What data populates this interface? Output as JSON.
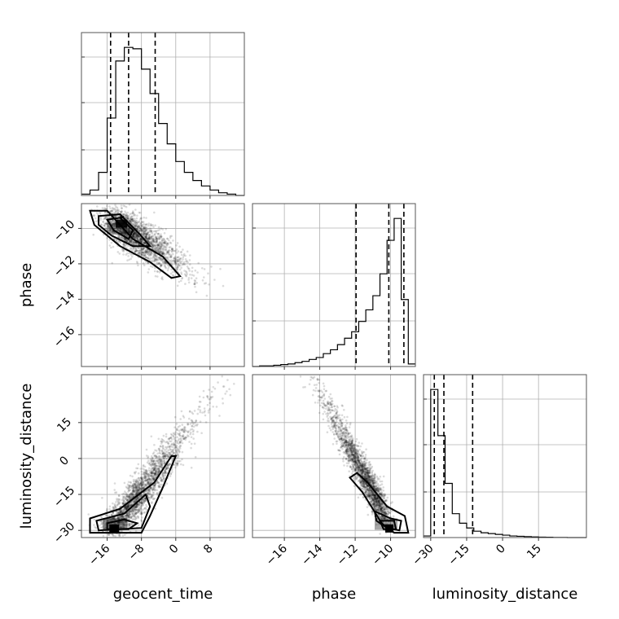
{
  "chart_data": {
    "type": "corner",
    "parameters": [
      "geocent_time",
      "phase",
      "luminosity_distance"
    ],
    "axis_labels": {
      "geocent_time": "geocent_time",
      "phase": "phase",
      "luminosity_distance": "luminosity_distance"
    },
    "ranges": {
      "geocent_time": [
        -22,
        16
      ],
      "phase": [
        -17.8,
        -8.6
      ],
      "luminosity_distance": [
        -33,
        35
      ]
    },
    "tick_values": {
      "geocent_time": [
        -16,
        -8,
        0,
        8
      ],
      "phase": [
        -16,
        -14,
        -12,
        -10
      ],
      "luminosity_distance": [
        -30,
        -15,
        0,
        15
      ]
    },
    "tick_labels": {
      "geocent_time": [
        "−16",
        "−8",
        "0",
        "8"
      ],
      "phase": [
        "−16",
        "−14",
        "−12",
        "−10"
      ],
      "luminosity_distance": [
        "−30",
        "−15",
        "0",
        "15"
      ]
    },
    "quantiles": {
      "geocent_time": [
        -15.2,
        -11.0,
        -4.8
      ],
      "phase": [
        -11.95,
        -10.1,
        -9.25
      ],
      "luminosity_distance": [
        -28.5,
        -24.5,
        -12.5
      ]
    },
    "histograms": {
      "geocent_time": {
        "edges": [
          -22,
          -20,
          -18,
          -16,
          -14,
          -12,
          -10,
          -8,
          -6,
          -4,
          -2,
          0,
          2,
          4,
          6,
          8,
          10,
          12,
          14,
          16
        ],
        "counts": [
          0.01,
          0.04,
          0.17,
          0.57,
          0.99,
          1.09,
          1.08,
          0.93,
          0.75,
          0.53,
          0.38,
          0.25,
          0.17,
          0.11,
          0.07,
          0.04,
          0.02,
          0.01,
          0.0
        ]
      },
      "phase": {
        "edges": [
          -17.8,
          -17.4,
          -17.0,
          -16.6,
          -16.2,
          -15.8,
          -15.4,
          -15.0,
          -14.6,
          -14.2,
          -13.8,
          -13.4,
          -13.0,
          -12.6,
          -12.2,
          -11.8,
          -11.4,
          -11.0,
          -10.6,
          -10.2,
          -9.8,
          -9.4,
          -9.0,
          -8.6
        ],
        "counts": [
          0.0,
          0.005,
          0.005,
          0.01,
          0.015,
          0.02,
          0.03,
          0.04,
          0.055,
          0.07,
          0.1,
          0.13,
          0.17,
          0.22,
          0.27,
          0.35,
          0.44,
          0.55,
          0.72,
          0.98,
          1.15,
          0.52,
          0.02
        ]
      },
      "luminosity_distance": {
        "edges": [
          -33,
          -30,
          -27,
          -24,
          -21,
          -18,
          -15,
          -12,
          -9,
          -6,
          -3,
          0,
          3,
          6,
          9,
          12,
          15,
          18,
          21,
          24,
          27,
          30,
          33,
          35
        ],
        "counts": [
          0.01,
          0.93,
          0.64,
          0.34,
          0.15,
          0.09,
          0.06,
          0.04,
          0.03,
          0.025,
          0.02,
          0.015,
          0.01,
          0.008,
          0.006,
          0.004,
          0.003,
          0.002,
          0.001,
          0.001,
          0.0,
          0.0,
          0.0
        ]
      }
    },
    "peak_points": {
      "geocent_time__phase": [
        -13,
        -9.7
      ],
      "geocent_time__luminosity_distance": [
        -13,
        -28
      ],
      "phase__luminosity_distance": [
        -10.2,
        -28
      ]
    },
    "grid": true
  }
}
